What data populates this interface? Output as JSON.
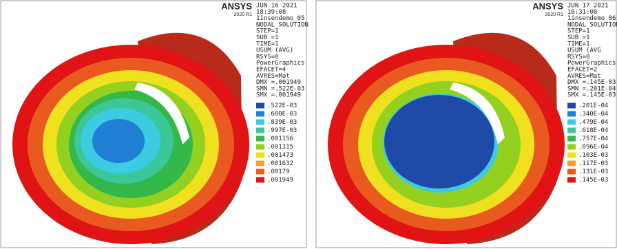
{
  "panels": [
    {
      "logo": "ANSYS",
      "version": "2020 R1",
      "info": [
        "JUN 16 2021",
        "18:39:08",
        "1insendemo_05",
        "NODAL SOLUTION",
        "STEP=1",
        "SUB =1",
        "TIME=1",
        "USUM      (AVG)",
        "RSYS=0",
        "PowerGraphics",
        "EFACET=4",
        "AVRES=Mat",
        "DMX =.001949",
        "SMN =.522E-03",
        "SMX =.001949"
      ],
      "legend": [
        {
          "label": ".522E-03",
          "color": "#1f4aa8"
        },
        {
          "label": ".680E-03",
          "color": "#1f7fd2"
        },
        {
          "label": ".839E-03",
          "color": "#3ccbe0"
        },
        {
          "label": ".997E-03",
          "color": "#3cc79a"
        },
        {
          "label": ".001156",
          "color": "#35b84a"
        },
        {
          "label": ".001315",
          "color": "#93d020"
        },
        {
          "label": ".001473",
          "color": "#efe020"
        },
        {
          "label": ".001632",
          "color": "#f0a428"
        },
        {
          "label": ".00179",
          "color": "#e85a20"
        },
        {
          "label": ".001949",
          "color": "#e01414"
        }
      ]
    },
    {
      "logo": "ANSYS",
      "version": "2020 R1",
      "info": [
        "JUN 17 2021",
        "16:31:00",
        "1insendemo_06",
        "NODAL SOLUTION",
        "STEP=1",
        "SUB =1",
        "TIME=1",
        "USUM      (AVG",
        "RSYS=0",
        "PowerGraphics",
        "EFACET=2",
        "AVRES=Mat",
        "DMX =.145E-03",
        "SMN =.201E-04",
        "SMX =.145E-03"
      ],
      "legend": [
        {
          "label": ".201E-04",
          "color": "#1f4aa8"
        },
        {
          "label": ".340E-04",
          "color": "#1f7fd2"
        },
        {
          "label": ".479E-04",
          "color": "#3ccbe0"
        },
        {
          "label": ".618E-04",
          "color": "#3cc79a"
        },
        {
          "label": ".757E-04",
          "color": "#35b84a"
        },
        {
          "label": ".896E-04",
          "color": "#93d020"
        },
        {
          "label": ".103E-03",
          "color": "#efe020"
        },
        {
          "label": ".117E-03",
          "color": "#f0a428"
        },
        {
          "label": ".131E-03",
          "color": "#e85a20"
        },
        {
          "label": ".145E-03",
          "color": "#e01414"
        }
      ]
    }
  ]
}
